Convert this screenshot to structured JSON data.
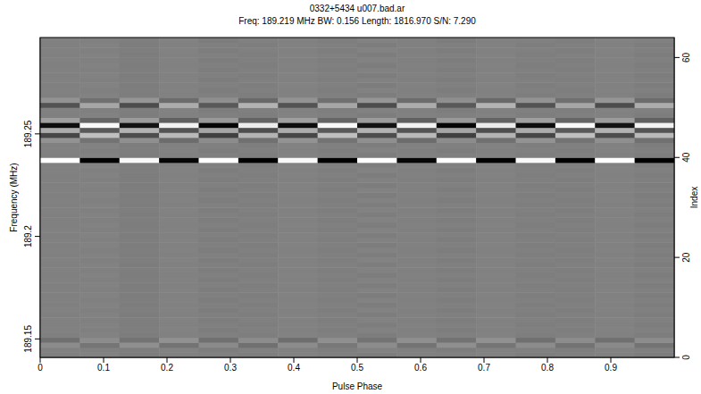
{
  "chart_data": {
    "type": "heatmap",
    "title": "0332+5434 u007.bad.ar",
    "subtitle": "Freq: 189.219 MHz BW: 0.156 Length: 1816.970 S/N: 7.290",
    "x_label": "Pulse Phase",
    "y_label": "Frequency (MHz)",
    "y2_label": "Index",
    "xlim": [
      0,
      1
    ],
    "xticks": [
      0,
      0.1,
      0.2,
      0.3,
      0.4,
      0.5,
      0.6,
      0.7,
      0.8,
      0.9
    ],
    "ylim": [
      189.141,
      189.297
    ],
    "yticks": [
      189.15,
      189.2,
      189.25
    ],
    "y2lim": [
      0,
      64
    ],
    "y2ticks": [
      0,
      20,
      40,
      60
    ],
    "cells": [
      [
        0,
        0.02,
        -0.02,
        0.01,
        0,
        -0.01,
        0.02,
        0,
        -0.02,
        0.01,
        0,
        0.02,
        -0.01,
        0,
        0.01,
        -0.02
      ],
      [
        0.01,
        0,
        -0.01,
        0.02,
        -0.02,
        0,
        0.01,
        -0.01,
        0.02,
        0,
        -0.02,
        0.01,
        0,
        -0.01,
        0.02,
        0
      ],
      [
        0.1,
        -0.08,
        0.12,
        -0.1,
        0.08,
        -0.12,
        0.1,
        -0.06,
        0.1,
        -0.1,
        0.12,
        -0.08,
        0.1,
        -0.1,
        0.08,
        -0.1
      ],
      [
        -0.12,
        0.1,
        -0.1,
        0.14,
        -0.12,
        0.1,
        -0.14,
        0.12,
        -0.1,
        0.12,
        -0.1,
        0.14,
        -0.12,
        0.1,
        -0.12,
        0.1
      ],
      [
        0,
        0.02,
        -0.02,
        0.01,
        0,
        -0.01,
        0.02,
        0,
        -0.02,
        0.01,
        0,
        0.02,
        -0.01,
        0,
        0.01,
        -0.02
      ],
      [
        0.01,
        0,
        -0.01,
        0.02,
        -0.02,
        0,
        0.01,
        -0.01,
        0.02,
        0,
        -0.02,
        0.01,
        0,
        -0.01,
        0.02,
        0
      ],
      [
        0,
        0.02,
        -0.02,
        0.01,
        0,
        -0.01,
        0.02,
        0,
        -0.02,
        0.01,
        0,
        0.02,
        -0.01,
        0,
        0.01,
        -0.02
      ],
      [
        0.01,
        0,
        -0.01,
        0.02,
        -0.02,
        0,
        0.01,
        -0.01,
        0.02,
        0,
        -0.02,
        0.01,
        0,
        -0.01,
        0.02,
        0
      ],
      [
        0,
        0.02,
        -0.02,
        0.01,
        0,
        -0.01,
        0.02,
        0,
        -0.02,
        0.01,
        0,
        0.02,
        -0.01,
        0,
        0.01,
        -0.02
      ],
      [
        0.01,
        0,
        -0.01,
        0.02,
        -0.02,
        0,
        0.01,
        -0.01,
        0.02,
        0,
        -0.02,
        0.01,
        0,
        -0.01,
        0.02,
        0
      ],
      [
        0,
        0.02,
        -0.02,
        0.01,
        0,
        -0.01,
        0.02,
        0,
        -0.02,
        0.01,
        0,
        0.02,
        -0.01,
        0,
        0.01,
        -0.02
      ],
      [
        0.01,
        0,
        -0.01,
        0.02,
        -0.02,
        0,
        0.01,
        -0.01,
        0.02,
        0,
        -0.02,
        0.01,
        0,
        -0.01,
        0.02,
        0
      ],
      [
        0,
        0.02,
        -0.02,
        0.01,
        0,
        -0.01,
        0.02,
        0,
        -0.02,
        0.01,
        0,
        0.02,
        -0.01,
        0,
        0.01,
        -0.02
      ],
      [
        0.01,
        0,
        -0.01,
        0.02,
        -0.02,
        0,
        0.01,
        -0.01,
        0.02,
        0,
        -0.02,
        0.01,
        0,
        -0.01,
        0.02,
        0
      ],
      [
        0,
        0.02,
        -0.02,
        0.01,
        0,
        -0.01,
        0.02,
        0,
        -0.02,
        0.01,
        0,
        0.02,
        -0.01,
        0,
        0.01,
        -0.02
      ],
      [
        0.01,
        0,
        -0.01,
        0.02,
        -0.02,
        0,
        0.01,
        -0.01,
        0.02,
        0,
        -0.02,
        0.01,
        0,
        -0.01,
        0.02,
        0
      ],
      [
        0,
        0.02,
        -0.02,
        0.01,
        0,
        -0.01,
        0.02,
        0,
        -0.02,
        0.01,
        0,
        0.02,
        -0.01,
        0,
        0.01,
        -0.02
      ],
      [
        0.01,
        0,
        -0.01,
        0.02,
        -0.02,
        0,
        0.01,
        -0.01,
        0.02,
        0,
        -0.02,
        0.01,
        0,
        -0.01,
        0.02,
        0
      ],
      [
        0,
        0.02,
        -0.02,
        0.01,
        0,
        -0.01,
        0.02,
        0,
        -0.02,
        0.01,
        0,
        0.02,
        -0.01,
        0,
        0.01,
        -0.02
      ],
      [
        0.01,
        0,
        -0.01,
        0.02,
        -0.02,
        0,
        0.01,
        -0.01,
        0.02,
        0,
        -0.02,
        0.01,
        0,
        -0.01,
        0.02,
        0
      ],
      [
        0,
        0.02,
        -0.02,
        0.01,
        0,
        -0.01,
        0.02,
        0,
        -0.02,
        0.01,
        0,
        0.02,
        -0.01,
        0,
        0.01,
        -0.02
      ],
      [
        0.01,
        0,
        -0.01,
        0.02,
        -0.02,
        0,
        0.01,
        -0.01,
        0.02,
        0,
        -0.02,
        0.01,
        0,
        -0.01,
        0.02,
        0
      ],
      [
        0,
        0.02,
        -0.02,
        0.01,
        0,
        -0.01,
        0.02,
        0,
        -0.02,
        0.01,
        0,
        0.02,
        -0.01,
        0,
        0.01,
        -0.02
      ],
      [
        0.01,
        0,
        -0.01,
        0.02,
        -0.02,
        0,
        0.01,
        -0.01,
        0.02,
        0,
        -0.02,
        0.01,
        0,
        -0.01,
        0.02,
        0
      ],
      [
        0,
        0.02,
        -0.02,
        0.01,
        0,
        -0.01,
        0.02,
        0,
        -0.02,
        0.01,
        0,
        0.02,
        -0.01,
        0,
        0.01,
        -0.02
      ],
      [
        0.01,
        0,
        -0.01,
        0.02,
        -0.02,
        0,
        0.01,
        -0.01,
        0.02,
        0,
        -0.02,
        0.01,
        0,
        -0.01,
        0.02,
        0
      ],
      [
        0,
        0.02,
        -0.02,
        0.01,
        0,
        -0.01,
        0.02,
        0,
        -0.02,
        0.01,
        0,
        0.02,
        -0.01,
        0,
        0.01,
        -0.02
      ],
      [
        0.01,
        0,
        -0.01,
        0.02,
        -0.02,
        0,
        0.01,
        -0.01,
        0.02,
        0,
        -0.02,
        0.01,
        0,
        -0.01,
        0.02,
        0
      ],
      [
        0,
        0.02,
        -0.02,
        0.01,
        0,
        -0.01,
        0.02,
        0,
        -0.02,
        0.01,
        0,
        0.02,
        -0.01,
        0,
        0.01,
        -0.02
      ],
      [
        0.01,
        0,
        -0.01,
        0.02,
        -0.02,
        0,
        0.01,
        -0.01,
        0.02,
        0,
        -0.02,
        0.01,
        0,
        -0.01,
        0.02,
        0
      ],
      [
        0,
        0.02,
        -0.02,
        0.01,
        0,
        -0.01,
        0.02,
        0,
        -0.02,
        0.01,
        0,
        0.02,
        -0.01,
        0,
        0.01,
        -0.02
      ],
      [
        0.01,
        0,
        -0.01,
        0.02,
        -0.02,
        0,
        0.01,
        -0.01,
        0.02,
        0,
        -0.02,
        0.01,
        0,
        -0.01,
        0.02,
        0
      ],
      [
        0,
        0.02,
        -0.02,
        0.01,
        0,
        -0.01,
        0.02,
        0,
        -0.02,
        0.01,
        0,
        0.02,
        -0.01,
        0,
        0.01,
        -0.02
      ],
      [
        0.01,
        0,
        -0.01,
        0.02,
        -0.02,
        0,
        0.01,
        -0.01,
        0.02,
        0,
        -0.02,
        0.01,
        0,
        -0.01,
        0.02,
        0
      ],
      [
        0,
        0.02,
        -0.02,
        0.01,
        0,
        -0.01,
        0.02,
        0,
        -0.02,
        0.01,
        0,
        0.02,
        -0.01,
        0,
        0.01,
        -0.02
      ],
      [
        0.01,
        0,
        -0.01,
        0.02,
        -0.02,
        0,
        0.01,
        -0.01,
        0.02,
        0,
        -0.02,
        0.01,
        0,
        -0.01,
        0.02,
        0
      ],
      [
        0,
        0.02,
        -0.02,
        0.01,
        0,
        -0.01,
        0.02,
        0,
        -0.02,
        0.01,
        0,
        0.02,
        -0.01,
        0,
        0.01,
        -0.02
      ],
      [
        0.01,
        0,
        -0.01,
        0.02,
        -0.02,
        0,
        0.01,
        -0.01,
        0.02,
        0,
        -0.02,
        0.01,
        0,
        -0.01,
        0.02,
        0
      ],
      [
        0,
        0.02,
        -0.02,
        0.01,
        0,
        -0.01,
        0.02,
        0,
        -0.02,
        0.01,
        0,
        0.02,
        -0.01,
        0,
        0.01,
        -0.02
      ],
      [
        1,
        -1,
        0.95,
        -0.95,
        1,
        -1,
        0.95,
        -1,
        1,
        -0.95,
        1,
        -1,
        0.95,
        -1,
        1,
        -1
      ],
      [
        0,
        0.02,
        -0.02,
        0.01,
        0,
        -0.01,
        0.02,
        0,
        -0.02,
        0.01,
        0,
        0.02,
        -0.01,
        0,
        0.01,
        -0.02
      ],
      [
        0.01,
        0,
        -0.01,
        0.02,
        -0.02,
        0,
        0.01,
        -0.01,
        0.02,
        0,
        -0.02,
        0.01,
        0,
        -0.01,
        0.02,
        0
      ],
      [
        0,
        0.02,
        -0.02,
        0.01,
        0,
        -0.01,
        0.02,
        0,
        -0.02,
        0.01,
        0,
        0.02,
        -0.01,
        0,
        0.01,
        -0.02
      ],
      [
        0.15,
        -0.1,
        0.12,
        -0.15,
        0.1,
        -0.12,
        0.15,
        -0.1,
        0.12,
        -0.15,
        0.1,
        -0.12,
        0.15,
        -0.1,
        0.12,
        -0.12
      ],
      [
        -0.45,
        0.5,
        -0.4,
        0.45,
        -0.5,
        0.4,
        -0.45,
        0.5,
        -0.4,
        0.45,
        -0.5,
        0.4,
        -0.45,
        0.5,
        -0.4,
        0.45
      ],
      [
        0.35,
        -0.3,
        0.4,
        -0.35,
        0.3,
        -0.4,
        0.35,
        -0.3,
        0.4,
        -0.35,
        0.3,
        -0.4,
        0.35,
        -0.3,
        0.4,
        -0.35
      ],
      [
        -0.9,
        0.95,
        -0.85,
        0.9,
        -0.95,
        0.85,
        -0.9,
        0.95,
        -0.85,
        0.9,
        -0.95,
        0.85,
        -0.9,
        0.95,
        -0.85,
        0.9
      ],
      [
        0.25,
        -0.2,
        0.22,
        -0.25,
        0.2,
        -0.22,
        0.25,
        -0.2,
        0.22,
        -0.25,
        0.2,
        -0.22,
        0.25,
        -0.2,
        0.22,
        -0.25
      ],
      [
        0,
        0.02,
        -0.02,
        0.01,
        0,
        -0.01,
        0.02,
        0,
        -0.02,
        0.01,
        0,
        0.02,
        -0.01,
        0,
        0.01,
        -0.02
      ],
      [
        0.01,
        0,
        -0.01,
        0.02,
        -0.02,
        0,
        0.01,
        -0.01,
        0.02,
        0,
        -0.02,
        0.01,
        0,
        -0.01,
        0.02,
        0
      ],
      [
        -0.35,
        0.3,
        -0.4,
        0.35,
        -0.3,
        0.4,
        -0.35,
        0.3,
        -0.4,
        0.35,
        -0.3,
        0.4,
        -0.35,
        0.3,
        -0.4,
        0.35
      ],
      [
        0.15,
        -0.12,
        0.18,
        -0.15,
        0.12,
        -0.18,
        0.15,
        -0.12,
        0.18,
        -0.15,
        0.12,
        -0.18,
        0.15,
        -0.12,
        0.18,
        -0.15
      ],
      [
        0,
        0.02,
        -0.02,
        0.01,
        0,
        -0.01,
        0.02,
        0,
        -0.02,
        0.01,
        0,
        0.02,
        -0.01,
        0,
        0.01,
        -0.02
      ],
      [
        0.01,
        0,
        -0.01,
        0.02,
        -0.02,
        0,
        0.01,
        -0.01,
        0.02,
        0,
        -0.02,
        0.01,
        0,
        -0.01,
        0.02,
        0
      ],
      [
        0,
        0.02,
        -0.02,
        0.01,
        0,
        -0.01,
        0.02,
        0,
        -0.02,
        0.01,
        0,
        0.02,
        -0.01,
        0,
        0.01,
        -0.02
      ],
      [
        0.01,
        0,
        -0.01,
        0.02,
        -0.02,
        0,
        0.01,
        -0.01,
        0.02,
        0,
        -0.02,
        0.01,
        0,
        -0.01,
        0.02,
        0
      ],
      [
        0,
        0.02,
        -0.02,
        0.01,
        0,
        -0.01,
        0.02,
        0,
        -0.02,
        0.01,
        0,
        0.02,
        -0.01,
        0,
        0.01,
        -0.02
      ],
      [
        0.01,
        0,
        -0.01,
        0.02,
        -0.02,
        0,
        0.01,
        -0.01,
        0.02,
        0,
        -0.02,
        0.01,
        0,
        -0.01,
        0.02,
        0
      ],
      [
        0,
        0.02,
        -0.02,
        0.01,
        0,
        -0.01,
        0.02,
        0,
        -0.02,
        0.01,
        0,
        0.02,
        -0.01,
        0,
        0.01,
        -0.02
      ],
      [
        0.01,
        0,
        -0.01,
        0.02,
        -0.02,
        0,
        0.01,
        -0.01,
        0.02,
        0,
        -0.02,
        0.01,
        0,
        -0.01,
        0.02,
        0
      ],
      [
        0,
        0.02,
        -0.02,
        0.01,
        0,
        -0.01,
        0.02,
        0,
        -0.02,
        0.01,
        0,
        0.02,
        -0.01,
        0,
        0.01,
        -0.02
      ],
      [
        0.01,
        0,
        -0.01,
        0.02,
        -0.02,
        0,
        0.01,
        -0.01,
        0.02,
        0,
        -0.02,
        0.01,
        0,
        -0.01,
        0.02,
        0
      ],
      [
        0,
        0.02,
        -0.02,
        0.01,
        0,
        -0.01,
        0.02,
        0,
        -0.02,
        0.01,
        0,
        0.02,
        -0.01,
        0,
        0.01,
        -0.02
      ],
      [
        0.01,
        0,
        -0.01,
        0.02,
        -0.02,
        0,
        0.01,
        -0.01,
        0.02,
        0,
        -0.02,
        0.01,
        0,
        -0.01,
        0.02,
        0
      ]
    ]
  }
}
